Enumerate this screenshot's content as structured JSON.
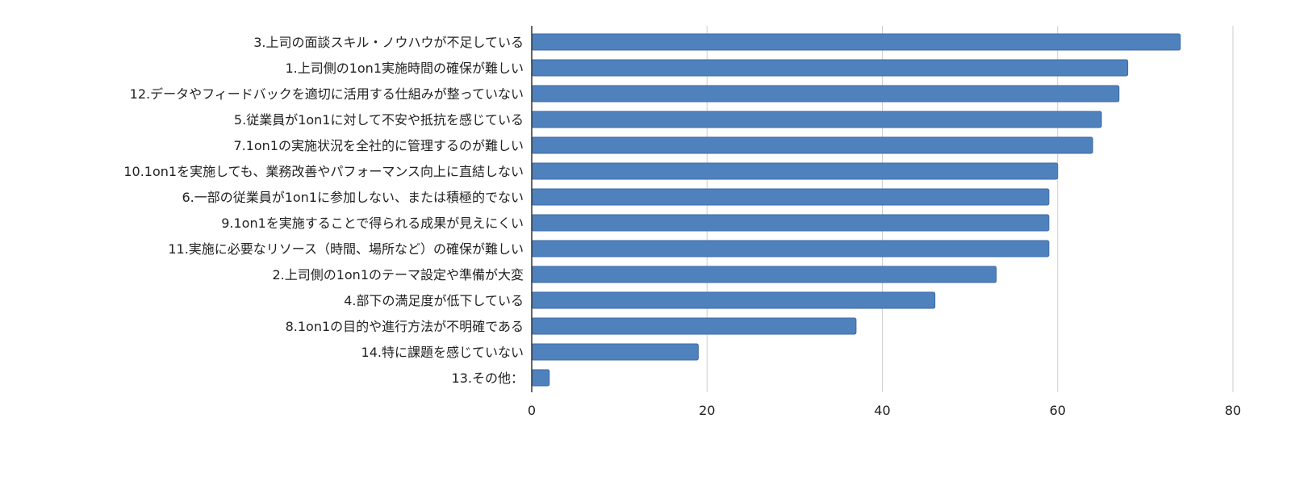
{
  "chart_data": {
    "type": "bar",
    "orientation": "horizontal",
    "categories": [
      "3.上司の面談スキル・ノウハウが不足している",
      "1.上司側の1on1実施時間の確保が難しい",
      "12.データやフィードバックを適切に活用する仕組みが整っていない",
      "5.従業員が1on1に対して不安や抵抗を感じている",
      "7.1on1の実施状況を全社的に管理するのが難しい",
      "10.1on1を実施しても、業務改善やパフォーマンス向上に直結しない",
      "6.一部の従業員が1on1に参加しない、または積極的でない",
      "9.1on1を実施することで得られる成果が見えにくい",
      "11.実施に必要なリソース（時間、場所など）の確保が難しい",
      "2.上司側の1on1のテーマ設定や準備が大変",
      "4.部下の満足度が低下している",
      "8.1on1の目的や進行方法が不明確である",
      "14.特に課題を感じていない",
      "13.その他："
    ],
    "values": [
      74,
      68,
      67,
      65,
      64,
      60,
      59,
      59,
      59,
      53,
      46,
      37,
      19,
      2
    ],
    "x_ticks": [
      0,
      20,
      40,
      60,
      80
    ],
    "xlim": [
      0,
      80
    ],
    "grid": true,
    "legend": "none",
    "bar_color": "#4f81bd",
    "bar_stroke_color": "#3c6aa6"
  }
}
